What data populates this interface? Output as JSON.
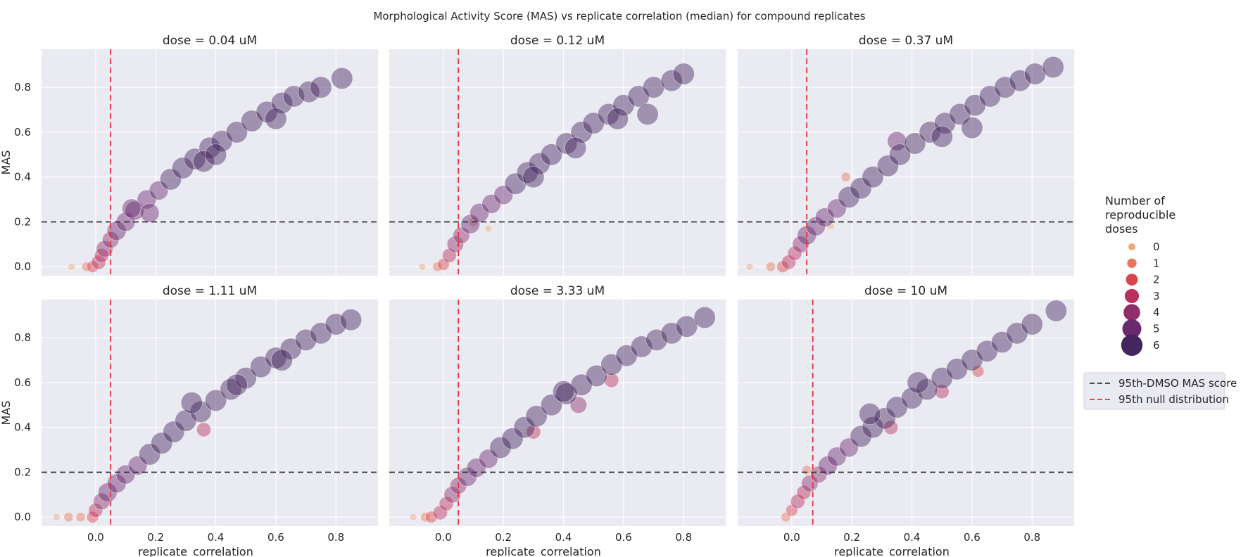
{
  "figure_title": "Morphological Activity Score (MAS) vs replicate correlation (median) for compound replicates",
  "colors": {
    "panel_bg": "#eaeaf2",
    "grid": "#ffffff",
    "dmso_line": "#33333d",
    "null_line": "#e8323c",
    "palette": [
      "#f0a878",
      "#e8755e",
      "#d9454c",
      "#b8305c",
      "#8f2e6a",
      "#6a2a6e",
      "#45255e"
    ]
  },
  "legend": {
    "hue_title_lines": [
      "Number of",
      "reproducible",
      "doses"
    ],
    "hue_items": [
      {
        "label": "0",
        "level": 0
      },
      {
        "label": "1",
        "level": 1
      },
      {
        "label": "2",
        "level": 2
      },
      {
        "label": "3",
        "level": 3
      },
      {
        "label": "4",
        "level": 4
      },
      {
        "label": "5",
        "level": 5
      },
      {
        "label": "6",
        "level": 6
      }
    ],
    "line_items": [
      {
        "label": "95th-DMSO MAS score",
        "kind": "dmso"
      },
      {
        "label": "95th null distribution",
        "kind": "null"
      }
    ]
  },
  "chart_data": {
    "type": "scatter",
    "xlabel": "replicate_correlation",
    "ylabel": "MAS",
    "xlim": [
      -0.18,
      0.94
    ],
    "ylim": [
      -0.04,
      0.97
    ],
    "xticks": [
      0.0,
      0.2,
      0.4,
      0.6,
      0.8
    ],
    "xtick_labels": [
      "0.0",
      "0.2",
      "0.4",
      "0.6",
      "0.8"
    ],
    "yticks": [
      0.0,
      0.2,
      0.4,
      0.6,
      0.8
    ],
    "ytick_labels": [
      "0.0",
      "0.2",
      "0.4",
      "0.6",
      "0.8"
    ],
    "dmso_mas_threshold": 0.2,
    "hue": "number of reproducible doses",
    "panels": [
      {
        "title": "dose = 0.04 uM",
        "null_threshold": 0.05,
        "points": [
          [
            -0.08,
            0.0,
            0
          ],
          [
            -0.03,
            0.0,
            1
          ],
          [
            -0.01,
            0.0,
            2
          ],
          [
            0.01,
            0.02,
            3
          ],
          [
            0.02,
            0.05,
            3
          ],
          [
            0.03,
            0.08,
            4
          ],
          [
            0.05,
            0.12,
            4
          ],
          [
            0.07,
            0.16,
            5
          ],
          [
            0.1,
            0.2,
            5
          ],
          [
            0.13,
            0.25,
            5
          ],
          [
            0.17,
            0.3,
            5
          ],
          [
            0.21,
            0.34,
            5
          ],
          [
            0.25,
            0.39,
            6
          ],
          [
            0.29,
            0.44,
            6
          ],
          [
            0.33,
            0.48,
            6
          ],
          [
            0.38,
            0.53,
            6
          ],
          [
            0.42,
            0.56,
            6
          ],
          [
            0.47,
            0.6,
            6
          ],
          [
            0.52,
            0.65,
            6
          ],
          [
            0.57,
            0.69,
            6
          ],
          [
            0.62,
            0.73,
            6
          ],
          [
            0.66,
            0.76,
            6
          ],
          [
            0.71,
            0.78,
            6
          ],
          [
            0.75,
            0.8,
            6
          ],
          [
            0.82,
            0.84,
            6
          ],
          [
            0.6,
            0.66,
            6
          ],
          [
            0.36,
            0.47,
            6
          ],
          [
            0.12,
            0.26,
            5
          ],
          [
            0.18,
            0.24,
            5
          ],
          [
            0.4,
            0.5,
            6
          ]
        ]
      },
      {
        "title": "dose = 0.12 uM",
        "null_threshold": 0.05,
        "points": [
          [
            -0.07,
            0.0,
            0
          ],
          [
            -0.02,
            0.0,
            1
          ],
          [
            0.0,
            0.01,
            2
          ],
          [
            0.02,
            0.05,
            3
          ],
          [
            0.04,
            0.1,
            4
          ],
          [
            0.06,
            0.14,
            4
          ],
          [
            0.09,
            0.19,
            5
          ],
          [
            0.12,
            0.24,
            5
          ],
          [
            0.16,
            0.28,
            5
          ],
          [
            0.2,
            0.32,
            5
          ],
          [
            0.24,
            0.37,
            6
          ],
          [
            0.28,
            0.42,
            6
          ],
          [
            0.32,
            0.46,
            6
          ],
          [
            0.36,
            0.5,
            6
          ],
          [
            0.41,
            0.55,
            6
          ],
          [
            0.46,
            0.6,
            6
          ],
          [
            0.5,
            0.64,
            6
          ],
          [
            0.55,
            0.68,
            6
          ],
          [
            0.6,
            0.72,
            6
          ],
          [
            0.65,
            0.76,
            6
          ],
          [
            0.7,
            0.8,
            6
          ],
          [
            0.76,
            0.83,
            6
          ],
          [
            0.8,
            0.86,
            6
          ],
          [
            0.68,
            0.68,
            6
          ],
          [
            0.1,
            0.2,
            1
          ],
          [
            0.15,
            0.17,
            0
          ],
          [
            0.3,
            0.4,
            6
          ],
          [
            0.44,
            0.53,
            6
          ],
          [
            0.58,
            0.66,
            6
          ]
        ]
      },
      {
        "title": "dose = 0.37 uM",
        "null_threshold": 0.05,
        "points": [
          [
            -0.14,
            0.0,
            0
          ],
          [
            -0.07,
            0.0,
            1
          ],
          [
            -0.03,
            0.0,
            2
          ],
          [
            -0.01,
            0.02,
            3
          ],
          [
            0.01,
            0.06,
            3
          ],
          [
            0.03,
            0.1,
            4
          ],
          [
            0.05,
            0.14,
            5
          ],
          [
            0.08,
            0.18,
            5
          ],
          [
            0.11,
            0.22,
            5
          ],
          [
            0.15,
            0.26,
            5
          ],
          [
            0.19,
            0.31,
            6
          ],
          [
            0.23,
            0.35,
            6
          ],
          [
            0.27,
            0.4,
            6
          ],
          [
            0.32,
            0.45,
            6
          ],
          [
            0.36,
            0.5,
            6
          ],
          [
            0.41,
            0.55,
            6
          ],
          [
            0.46,
            0.6,
            6
          ],
          [
            0.51,
            0.64,
            6
          ],
          [
            0.56,
            0.68,
            6
          ],
          [
            0.61,
            0.72,
            6
          ],
          [
            0.66,
            0.76,
            6
          ],
          [
            0.71,
            0.8,
            6
          ],
          [
            0.76,
            0.83,
            6
          ],
          [
            0.81,
            0.86,
            6
          ],
          [
            0.87,
            0.89,
            6
          ],
          [
            0.5,
            0.58,
            6
          ],
          [
            0.18,
            0.4,
            1
          ],
          [
            0.13,
            0.18,
            0
          ],
          [
            0.35,
            0.56,
            5
          ],
          [
            0.6,
            0.62,
            6
          ]
        ]
      },
      {
        "title": "dose = 1.11 uM",
        "null_threshold": 0.05,
        "points": [
          [
            -0.13,
            0.0,
            0
          ],
          [
            -0.09,
            0.0,
            1
          ],
          [
            -0.05,
            0.0,
            1
          ],
          [
            -0.01,
            0.0,
            2
          ],
          [
            0.0,
            0.03,
            3
          ],
          [
            0.02,
            0.07,
            4
          ],
          [
            0.04,
            0.11,
            5
          ],
          [
            0.07,
            0.15,
            5
          ],
          [
            0.1,
            0.19,
            5
          ],
          [
            0.14,
            0.23,
            5
          ],
          [
            0.18,
            0.28,
            6
          ],
          [
            0.22,
            0.33,
            6
          ],
          [
            0.26,
            0.38,
            6
          ],
          [
            0.3,
            0.43,
            6
          ],
          [
            0.35,
            0.47,
            6
          ],
          [
            0.4,
            0.52,
            6
          ],
          [
            0.45,
            0.57,
            6
          ],
          [
            0.5,
            0.62,
            6
          ],
          [
            0.55,
            0.67,
            6
          ],
          [
            0.6,
            0.71,
            6
          ],
          [
            0.65,
            0.75,
            6
          ],
          [
            0.7,
            0.79,
            6
          ],
          [
            0.75,
            0.82,
            6
          ],
          [
            0.8,
            0.86,
            6
          ],
          [
            0.85,
            0.88,
            6
          ],
          [
            0.36,
            0.39,
            3
          ],
          [
            0.32,
            0.51,
            6
          ],
          [
            0.47,
            0.59,
            6
          ],
          [
            0.62,
            0.7,
            6
          ]
        ]
      },
      {
        "title": "dose = 3.33 uM",
        "null_threshold": 0.05,
        "points": [
          [
            -0.1,
            0.0,
            0
          ],
          [
            -0.06,
            0.0,
            1
          ],
          [
            -0.04,
            0.0,
            2
          ],
          [
            -0.01,
            0.02,
            3
          ],
          [
            0.01,
            0.06,
            3
          ],
          [
            0.03,
            0.1,
            4
          ],
          [
            0.05,
            0.14,
            4
          ],
          [
            0.08,
            0.18,
            5
          ],
          [
            0.11,
            0.22,
            5
          ],
          [
            0.15,
            0.26,
            5
          ],
          [
            0.19,
            0.31,
            6
          ],
          [
            0.23,
            0.35,
            6
          ],
          [
            0.27,
            0.4,
            6
          ],
          [
            0.31,
            0.45,
            6
          ],
          [
            0.36,
            0.5,
            6
          ],
          [
            0.41,
            0.55,
            6
          ],
          [
            0.46,
            0.59,
            6
          ],
          [
            0.51,
            0.63,
            6
          ],
          [
            0.56,
            0.68,
            6
          ],
          [
            0.61,
            0.72,
            6
          ],
          [
            0.66,
            0.76,
            6
          ],
          [
            0.71,
            0.79,
            6
          ],
          [
            0.76,
            0.82,
            6
          ],
          [
            0.81,
            0.85,
            6
          ],
          [
            0.87,
            0.89,
            6
          ],
          [
            0.4,
            0.56,
            6
          ],
          [
            0.45,
            0.5,
            4
          ],
          [
            0.56,
            0.61,
            3
          ],
          [
            0.3,
            0.38,
            3
          ]
        ]
      },
      {
        "title": "dose = 10 uM",
        "null_threshold": 0.07,
        "points": [
          [
            -0.02,
            0.0,
            1
          ],
          [
            0.0,
            0.03,
            2
          ],
          [
            0.02,
            0.07,
            3
          ],
          [
            0.04,
            0.11,
            3
          ],
          [
            0.06,
            0.15,
            4
          ],
          [
            0.09,
            0.19,
            4
          ],
          [
            0.12,
            0.23,
            5
          ],
          [
            0.15,
            0.27,
            5
          ],
          [
            0.19,
            0.31,
            5
          ],
          [
            0.23,
            0.36,
            6
          ],
          [
            0.27,
            0.4,
            6
          ],
          [
            0.31,
            0.44,
            6
          ],
          [
            0.35,
            0.49,
            6
          ],
          [
            0.4,
            0.53,
            6
          ],
          [
            0.45,
            0.57,
            6
          ],
          [
            0.5,
            0.62,
            6
          ],
          [
            0.55,
            0.66,
            6
          ],
          [
            0.6,
            0.7,
            6
          ],
          [
            0.65,
            0.74,
            6
          ],
          [
            0.7,
            0.78,
            6
          ],
          [
            0.75,
            0.82,
            6
          ],
          [
            0.8,
            0.86,
            6
          ],
          [
            0.88,
            0.92,
            6
          ],
          [
            0.26,
            0.46,
            6
          ],
          [
            0.33,
            0.4,
            3
          ],
          [
            0.5,
            0.56,
            3
          ],
          [
            0.42,
            0.6,
            6
          ],
          [
            0.05,
            0.21,
            1
          ],
          [
            0.62,
            0.65,
            2
          ]
        ]
      }
    ]
  }
}
